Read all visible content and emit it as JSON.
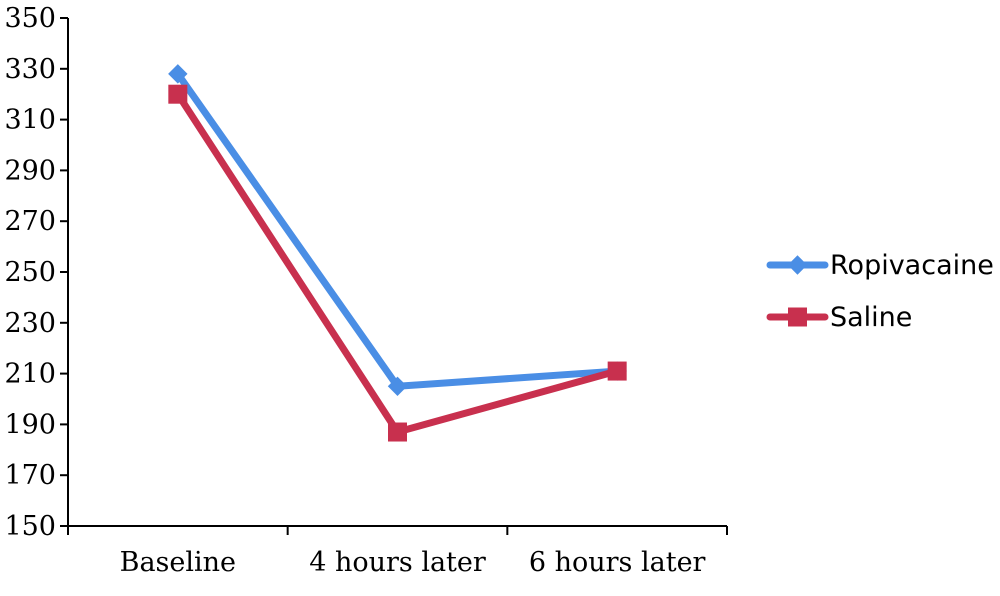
{
  "chart_data": {
    "type": "line",
    "categories": [
      "Baseline",
      "4 hours later",
      "6 hours later"
    ],
    "series": [
      {
        "name": "Ropivacaine",
        "values": [
          328,
          205,
          211
        ],
        "color": "#4A8EE5",
        "marker": "diamond"
      },
      {
        "name": "Saline",
        "values": [
          320,
          187,
          211
        ],
        "color": "#C8304E",
        "marker": "square"
      }
    ],
    "title": "",
    "xlabel": "",
    "ylabel": "",
    "ylim": [
      150,
      350
    ],
    "yticks": [
      150,
      170,
      190,
      210,
      230,
      250,
      270,
      290,
      310,
      330,
      350
    ],
    "yticklabels": [
      "150",
      "170",
      "190",
      "210",
      "230",
      "250",
      "270",
      "290",
      "310",
      "330",
      "350"
    ],
    "grid": false,
    "legend_position": "right"
  }
}
